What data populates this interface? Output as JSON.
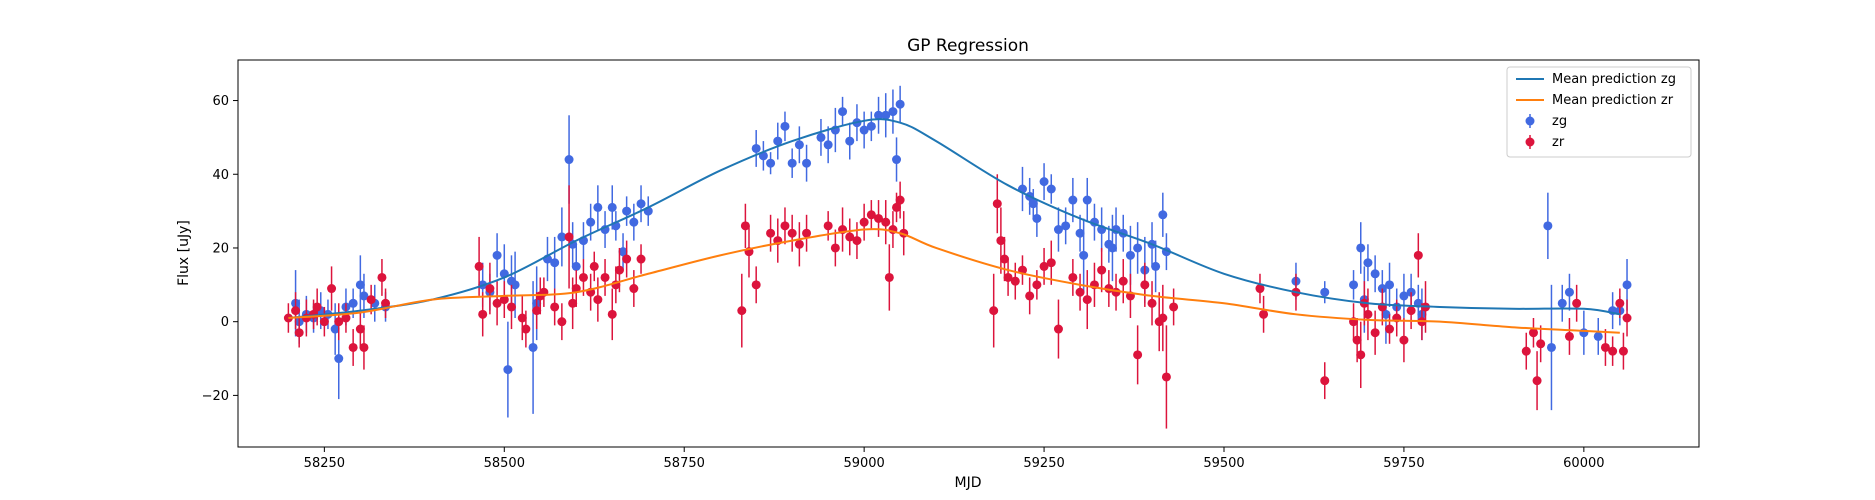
{
  "chart_data": {
    "type": "scatter",
    "title": "GP Regression",
    "xlabel": "MJD",
    "ylabel": "Flux [uJy]",
    "xlim": [
      58130,
      60160
    ],
    "ylim": [
      -34,
      71
    ],
    "xticks": [
      58250,
      58500,
      58750,
      59000,
      59250,
      59500,
      59750,
      60000
    ],
    "yticks": [
      -20,
      0,
      20,
      40,
      60
    ],
    "grid": false,
    "legend_position": "top-right",
    "colors": {
      "mean_zg": "#1f77b4",
      "mean_zr": "#ff7f0e",
      "zg": "#4169e1",
      "zr": "#dc143c"
    },
    "lines": [
      {
        "name": "Mean prediction zg",
        "x": [
          58200,
          58300,
          58400,
          58500,
          58600,
          58700,
          58800,
          58900,
          59000,
          59050,
          59100,
          59200,
          59300,
          59400,
          59500,
          59600,
          59700,
          59800,
          59900,
          60000,
          60050
        ],
        "y": [
          1,
          3,
          6,
          12,
          22,
          31,
          41,
          49,
          54.5,
          54,
          49,
          37,
          28,
          21,
          13,
          8,
          5,
          4,
          3.5,
          3.5,
          2
        ]
      },
      {
        "name": "Mean prediction zr",
        "x": [
          58200,
          58300,
          58400,
          58500,
          58600,
          58700,
          58800,
          58900,
          59000,
          59050,
          59100,
          59200,
          59300,
          59400,
          59500,
          59600,
          59700,
          59800,
          59900,
          60000,
          60050
        ],
        "y": [
          1,
          2.5,
          6,
          7,
          8,
          13,
          18,
          22,
          25,
          24,
          20,
          14,
          10,
          7,
          5,
          2,
          0.5,
          0,
          -1.5,
          -2.5,
          -3
        ]
      }
    ],
    "series": [
      {
        "name": "zg",
        "marker": "circle",
        "points": [
          [
            58210,
            5,
            9
          ],
          [
            58215,
            0,
            6
          ],
          [
            58225,
            2,
            5
          ],
          [
            58235,
            1,
            4
          ],
          [
            58245,
            3,
            5
          ],
          [
            58255,
            2,
            4
          ],
          [
            58265,
            -2,
            7
          ],
          [
            58270,
            -10,
            11
          ],
          [
            58280,
            4,
            5
          ],
          [
            58290,
            5,
            4
          ],
          [
            58300,
            10,
            8
          ],
          [
            58305,
            7,
            6
          ],
          [
            58320,
            5,
            5
          ],
          [
            58335,
            4,
            4
          ],
          [
            58470,
            10,
            6
          ],
          [
            58480,
            8,
            5
          ],
          [
            58490,
            18,
            6
          ],
          [
            58500,
            13,
            8
          ],
          [
            58505,
            -13,
            13
          ],
          [
            58510,
            11,
            7
          ],
          [
            58515,
            10,
            9
          ],
          [
            58540,
            -7,
            18
          ],
          [
            58545,
            5,
            10
          ],
          [
            58560,
            17,
            6
          ],
          [
            58570,
            16,
            7
          ],
          [
            58580,
            23,
            8
          ],
          [
            58590,
            44,
            12
          ],
          [
            58595,
            21,
            6
          ],
          [
            58600,
            15,
            6
          ],
          [
            58610,
            22,
            5
          ],
          [
            58620,
            27,
            5
          ],
          [
            58630,
            31,
            6
          ],
          [
            58640,
            25,
            5
          ],
          [
            58650,
            31,
            6
          ],
          [
            58655,
            26,
            4
          ],
          [
            58665,
            19,
            5
          ],
          [
            58670,
            30,
            4
          ],
          [
            58680,
            27,
            5
          ],
          [
            58690,
            32,
            5
          ],
          [
            58700,
            30,
            4
          ],
          [
            58850,
            47,
            5
          ],
          [
            58860,
            45,
            4
          ],
          [
            58870,
            43,
            3
          ],
          [
            58880,
            49,
            5
          ],
          [
            58890,
            53,
            4
          ],
          [
            58900,
            43,
            4
          ],
          [
            58910,
            48,
            5
          ],
          [
            58920,
            43,
            5
          ],
          [
            58940,
            50,
            5
          ],
          [
            58950,
            48,
            5
          ],
          [
            58960,
            52,
            6
          ],
          [
            58970,
            57,
            4
          ],
          [
            58980,
            49,
            5
          ],
          [
            58990,
            54,
            5
          ],
          [
            59000,
            52,
            5
          ],
          [
            59010,
            53,
            4
          ],
          [
            59020,
            56,
            5
          ],
          [
            59030,
            56,
            6
          ],
          [
            59040,
            57,
            6
          ],
          [
            59045,
            44,
            6
          ],
          [
            59050,
            59,
            5
          ],
          [
            59220,
            36,
            6
          ],
          [
            59230,
            34,
            5
          ],
          [
            59235,
            32,
            4
          ],
          [
            59240,
            28,
            5
          ],
          [
            59250,
            38,
            5
          ],
          [
            59260,
            36,
            4
          ],
          [
            59270,
            25,
            6
          ],
          [
            59280,
            26,
            5
          ],
          [
            59290,
            33,
            6
          ],
          [
            59300,
            24,
            5
          ],
          [
            59305,
            18,
            10
          ],
          [
            59310,
            33,
            6
          ],
          [
            59320,
            27,
            5
          ],
          [
            59330,
            25,
            6
          ],
          [
            59340,
            21,
            5
          ],
          [
            59345,
            20,
            9
          ],
          [
            59350,
            25,
            6
          ],
          [
            59360,
            24,
            5
          ],
          [
            59370,
            18,
            8
          ],
          [
            59380,
            20,
            7
          ],
          [
            59390,
            14,
            9
          ],
          [
            59400,
            21,
            6
          ],
          [
            59405,
            15,
            7
          ],
          [
            59415,
            29,
            6
          ],
          [
            59420,
            19,
            5
          ],
          [
            59600,
            11,
            5
          ],
          [
            59640,
            8,
            3
          ],
          [
            59680,
            10,
            4
          ],
          [
            59690,
            20,
            7
          ],
          [
            59695,
            6,
            9
          ],
          [
            59700,
            16,
            5
          ],
          [
            59710,
            13,
            5
          ],
          [
            59720,
            9,
            5
          ],
          [
            59725,
            2,
            8
          ],
          [
            59730,
            10,
            6
          ],
          [
            59740,
            4,
            5
          ],
          [
            59750,
            7,
            6
          ],
          [
            59760,
            8,
            5
          ],
          [
            59770,
            5,
            5
          ],
          [
            59775,
            2,
            7
          ],
          [
            59950,
            26,
            9
          ],
          [
            59955,
            -7,
            17
          ],
          [
            59970,
            5,
            5
          ],
          [
            59980,
            8,
            5
          ],
          [
            60000,
            -3,
            6
          ],
          [
            60020,
            -4,
            5
          ],
          [
            60040,
            3,
            5
          ],
          [
            60050,
            3,
            4
          ],
          [
            60060,
            10,
            7
          ]
        ]
      },
      {
        "name": "zr",
        "marker": "circle",
        "points": [
          [
            58200,
            1,
            4
          ],
          [
            58210,
            3,
            5
          ],
          [
            58215,
            -3,
            4
          ],
          [
            58225,
            1,
            5
          ],
          [
            58235,
            2,
            4
          ],
          [
            58240,
            4,
            5
          ],
          [
            58250,
            0,
            4
          ],
          [
            58260,
            9,
            6
          ],
          [
            58270,
            0,
            5
          ],
          [
            58280,
            1,
            4
          ],
          [
            58290,
            -7,
            5
          ],
          [
            58300,
            -2,
            5
          ],
          [
            58305,
            -7,
            6
          ],
          [
            58315,
            6,
            4
          ],
          [
            58330,
            12,
            5
          ],
          [
            58335,
            5,
            4
          ],
          [
            58465,
            15,
            8
          ],
          [
            58470,
            2,
            6
          ],
          [
            58480,
            9,
            7
          ],
          [
            58490,
            5,
            6
          ],
          [
            58500,
            6,
            5
          ],
          [
            58510,
            4,
            6
          ],
          [
            58525,
            1,
            6
          ],
          [
            58530,
            -2,
            5
          ],
          [
            58545,
            3,
            5
          ],
          [
            58550,
            7,
            5
          ],
          [
            58555,
            8,
            4
          ],
          [
            58570,
            4,
            5
          ],
          [
            58580,
            0,
            5
          ],
          [
            58590,
            23,
            14
          ],
          [
            58595,
            5,
            7
          ],
          [
            58600,
            9,
            5
          ],
          [
            58610,
            12,
            5
          ],
          [
            58620,
            8,
            5
          ],
          [
            58625,
            15,
            4
          ],
          [
            58630,
            6,
            6
          ],
          [
            58640,
            12,
            5
          ],
          [
            58650,
            2,
            7
          ],
          [
            58655,
            10,
            5
          ],
          [
            58660,
            14,
            6
          ],
          [
            58670,
            17,
            5
          ],
          [
            58680,
            9,
            5
          ],
          [
            58690,
            17,
            4
          ],
          [
            58830,
            3,
            10
          ],
          [
            58835,
            26,
            6
          ],
          [
            58840,
            19,
            7
          ],
          [
            58850,
            10,
            5
          ],
          [
            58870,
            24,
            5
          ],
          [
            58880,
            22,
            6
          ],
          [
            58890,
            26,
            5
          ],
          [
            58900,
            24,
            5
          ],
          [
            58910,
            21,
            6
          ],
          [
            58920,
            24,
            5
          ],
          [
            58950,
            26,
            4
          ],
          [
            58960,
            20,
            5
          ],
          [
            58970,
            25,
            6
          ],
          [
            58980,
            23,
            5
          ],
          [
            58990,
            22,
            5
          ],
          [
            59000,
            27,
            5
          ],
          [
            59010,
            29,
            4
          ],
          [
            59020,
            28,
            5
          ],
          [
            59030,
            27,
            6
          ],
          [
            59035,
            12,
            9
          ],
          [
            59040,
            25,
            5
          ],
          [
            59045,
            31,
            4
          ],
          [
            59050,
            33,
            5
          ],
          [
            59055,
            24,
            6
          ],
          [
            59180,
            3,
            10
          ],
          [
            59185,
            32,
            8
          ],
          [
            59190,
            22,
            9
          ],
          [
            59195,
            17,
            6
          ],
          [
            59200,
            12,
            5
          ],
          [
            59210,
            11,
            5
          ],
          [
            59220,
            14,
            4
          ],
          [
            59230,
            7,
            5
          ],
          [
            59240,
            10,
            4
          ],
          [
            59250,
            15,
            5
          ],
          [
            59260,
            16,
            6
          ],
          [
            59270,
            -2,
            8
          ],
          [
            59290,
            12,
            5
          ],
          [
            59300,
            8,
            5
          ],
          [
            59310,
            6,
            8
          ],
          [
            59320,
            10,
            6
          ],
          [
            59330,
            14,
            6
          ],
          [
            59340,
            9,
            5
          ],
          [
            59350,
            8,
            5
          ],
          [
            59360,
            11,
            6
          ],
          [
            59370,
            7,
            6
          ],
          [
            59380,
            -9,
            8
          ],
          [
            59390,
            10,
            6
          ],
          [
            59400,
            5,
            6
          ],
          [
            59410,
            0,
            8
          ],
          [
            59415,
            1,
            9
          ],
          [
            59420,
            -15,
            14
          ],
          [
            59430,
            4,
            5
          ],
          [
            59550,
            9,
            4
          ],
          [
            59555,
            2,
            5
          ],
          [
            59600,
            8,
            5
          ],
          [
            59640,
            -16,
            5
          ],
          [
            59680,
            0,
            5
          ],
          [
            59685,
            -5,
            6
          ],
          [
            59690,
            -9,
            9
          ],
          [
            59695,
            5,
            6
          ],
          [
            59700,
            2,
            7
          ],
          [
            59710,
            -3,
            6
          ],
          [
            59720,
            4,
            5
          ],
          [
            59730,
            -2,
            4
          ],
          [
            59740,
            1,
            5
          ],
          [
            59750,
            -5,
            6
          ],
          [
            59760,
            3,
            5
          ],
          [
            59770,
            18,
            6
          ],
          [
            59775,
            0,
            5
          ],
          [
            59780,
            4,
            7
          ],
          [
            59920,
            -8,
            5
          ],
          [
            59930,
            -3,
            4
          ],
          [
            59935,
            -16,
            8
          ],
          [
            59940,
            -6,
            5
          ],
          [
            59980,
            -4,
            5
          ],
          [
            59990,
            5,
            5
          ],
          [
            60030,
            -7,
            5
          ],
          [
            60040,
            -8,
            4
          ],
          [
            60050,
            5,
            4
          ],
          [
            60055,
            -8,
            5
          ],
          [
            60060,
            1,
            5
          ]
        ]
      }
    ]
  }
}
